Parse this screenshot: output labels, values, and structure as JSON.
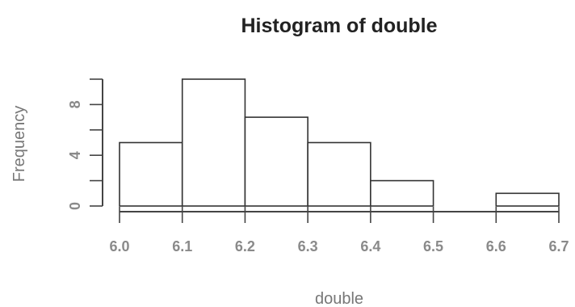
{
  "chart_data": {
    "type": "bar",
    "title": "Histogram of double",
    "xlabel": "double",
    "ylabel": "Frequency",
    "bins": [
      {
        "start": 6.0,
        "end": 6.1,
        "count": 5
      },
      {
        "start": 6.1,
        "end": 6.2,
        "count": 10
      },
      {
        "start": 6.2,
        "end": 6.3,
        "count": 7
      },
      {
        "start": 6.3,
        "end": 6.4,
        "count": 5
      },
      {
        "start": 6.4,
        "end": 6.5,
        "count": 2
      },
      {
        "start": 6.5,
        "end": 6.6,
        "count": 0
      },
      {
        "start": 6.6,
        "end": 6.7,
        "count": 1
      }
    ],
    "x_ticks": [
      "6.0",
      "6.1",
      "6.2",
      "6.3",
      "6.4",
      "6.5",
      "6.6",
      "6.7"
    ],
    "y_ticks": [
      0,
      4,
      8
    ],
    "y_minor_ticks": [
      0,
      2,
      4,
      6,
      8,
      10
    ],
    "xlim": [
      6.0,
      6.7
    ],
    "ylim": [
      0,
      10
    ],
    "grid": false,
    "legend": "none"
  }
}
